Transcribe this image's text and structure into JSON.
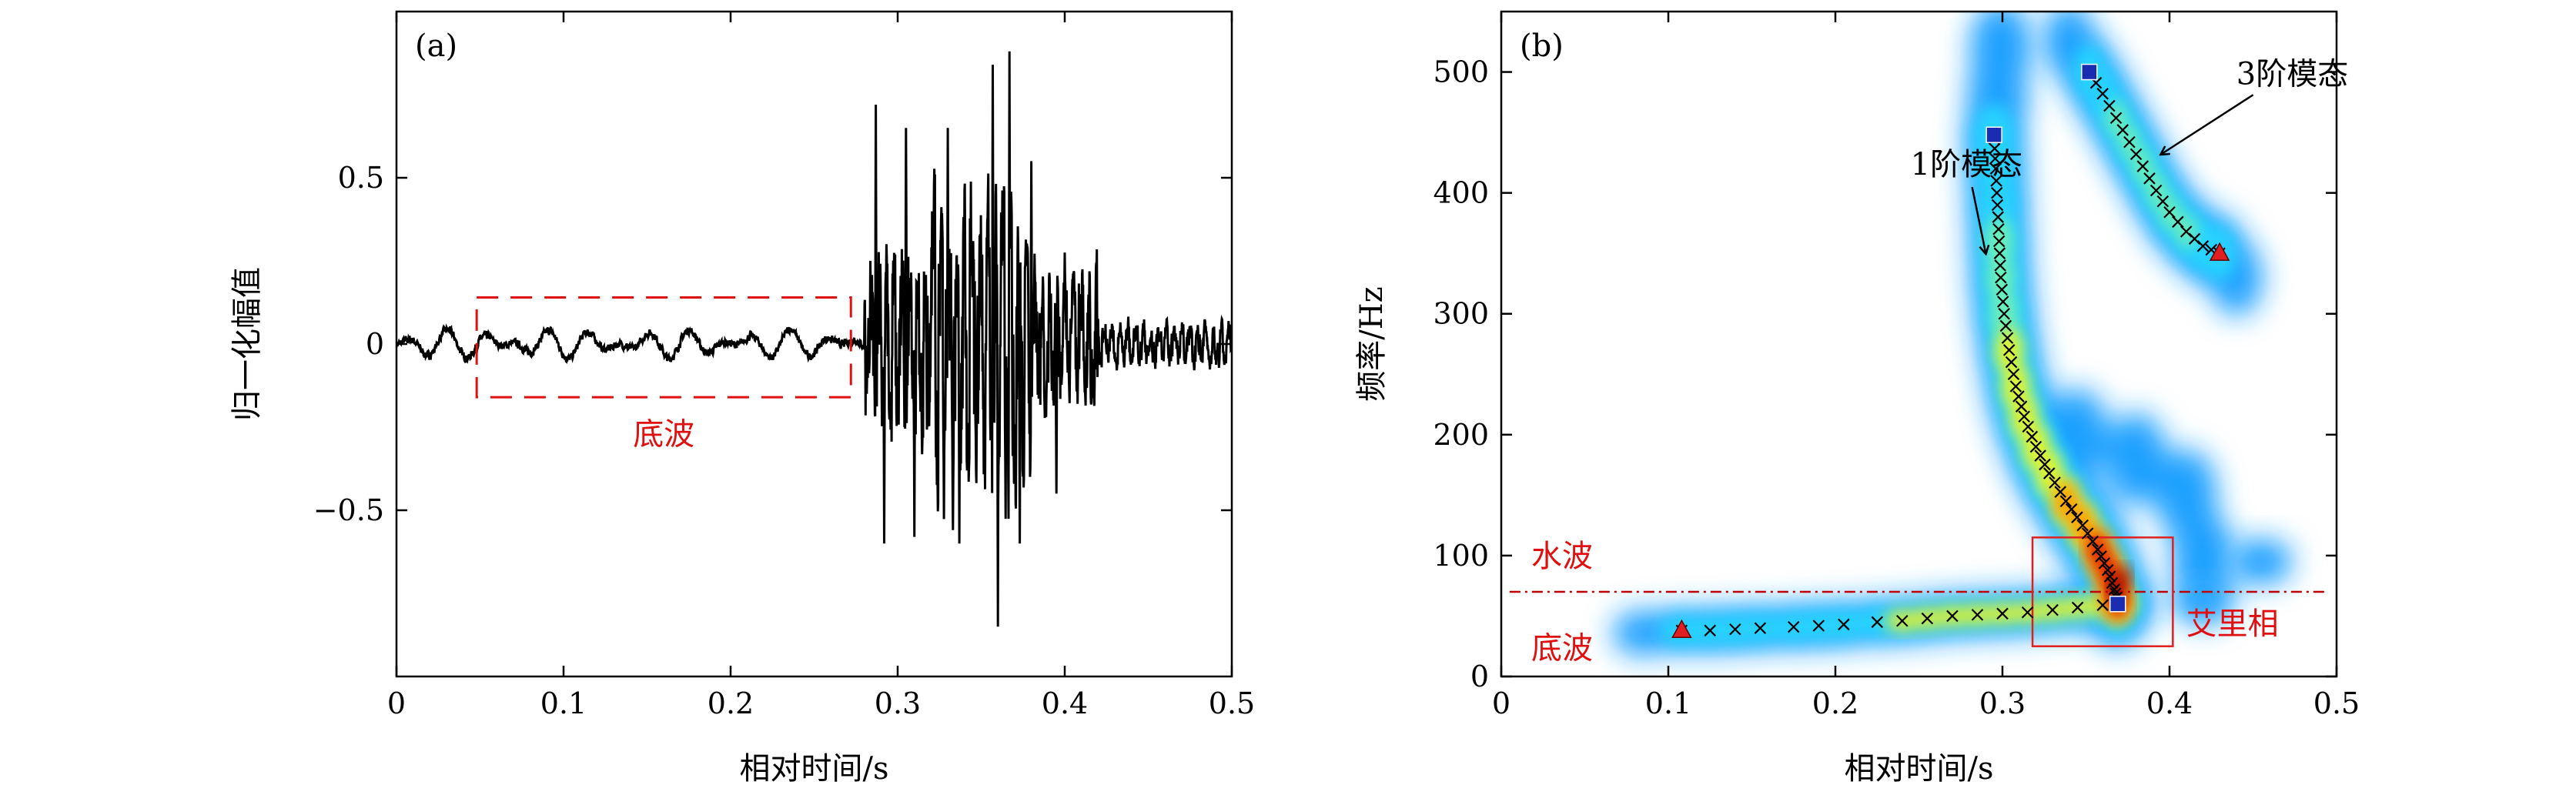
{
  "chart_data": [
    {
      "type": "line",
      "panel_label": "(a)",
      "xlabel": "相对时间/s",
      "ylabel": "归一化幅值",
      "xlim": [
        0,
        0.5
      ],
      "ylim": [
        -1.0,
        1.0
      ],
      "xticks": [
        "0",
        "0.1",
        "0.2",
        "0.3",
        "0.4",
        "0.5"
      ],
      "xtick_values": [
        0,
        0.1,
        0.2,
        0.3,
        0.4,
        0.5
      ],
      "yticks": [
        "−0.5",
        "0",
        "0.5"
      ],
      "ytick_values": [
        -0.5,
        0,
        0.5
      ],
      "series": [
        {
          "color": "#000000",
          "segments": [
            {
              "t0": 0.0,
              "t1": 0.28,
              "amplitude": 0.05
            },
            {
              "t0": 0.28,
              "t1": 0.32,
              "amplitude": 0.45
            },
            {
              "t0": 0.32,
              "t1": 0.38,
              "amplitude": 0.7
            },
            {
              "t0": 0.38,
              "t1": 0.42,
              "amplitude": 0.35
            },
            {
              "t0": 0.42,
              "t1": 0.5,
              "amplitude": 0.1
            }
          ],
          "peaks": [
            {
              "x": 0.287,
              "y": 0.72
            },
            {
              "x": 0.292,
              "y": -0.6
            },
            {
              "x": 0.305,
              "y": 0.65
            },
            {
              "x": 0.31,
              "y": -0.58
            },
            {
              "x": 0.33,
              "y": 0.65
            },
            {
              "x": 0.337,
              "y": -0.6
            },
            {
              "x": 0.357,
              "y": 0.84
            },
            {
              "x": 0.36,
              "y": -0.85
            },
            {
              "x": 0.367,
              "y": 0.88
            },
            {
              "x": 0.373,
              "y": -0.6
            },
            {
              "x": 0.38,
              "y": 0.55
            },
            {
              "x": 0.395,
              "y": -0.45
            }
          ]
        }
      ],
      "annotations": [
        {
          "kind": "dashed-box",
          "x0": 0.048,
          "x1": 0.272,
          "y0": -0.16,
          "y1": 0.14,
          "color": "#e01010"
        },
        {
          "kind": "text",
          "text": "底波",
          "x": 0.16,
          "y": -0.27,
          "color": "#e01010"
        }
      ]
    },
    {
      "type": "heatmap",
      "panel_label": "(b)",
      "xlabel": "相对时间/s",
      "ylabel": "频率/Hz",
      "xlim": [
        0,
        0.5
      ],
      "ylim": [
        0,
        550
      ],
      "xticks": [
        "0",
        "0.1",
        "0.2",
        "0.3",
        "0.4",
        "0.5"
      ],
      "xtick_values": [
        0,
        0.1,
        0.2,
        0.3,
        0.4,
        0.5
      ],
      "yticks": [
        "0",
        "100",
        "200",
        "300",
        "400",
        "500"
      ],
      "ytick_values": [
        0,
        100,
        200,
        300,
        400,
        500
      ],
      "colormap": [
        "#1aa0ff",
        "#27d3ff",
        "#74f2b0",
        "#f2f21a",
        "#ff9a00",
        "#e01a00",
        "#a00000"
      ],
      "mode_1_ridge": [
        {
          "x": 0.295,
          "y": 445
        },
        {
          "x": 0.296,
          "y": 420
        },
        {
          "x": 0.297,
          "y": 390
        },
        {
          "x": 0.298,
          "y": 360
        },
        {
          "x": 0.299,
          "y": 330
        },
        {
          "x": 0.301,
          "y": 300
        },
        {
          "x": 0.304,
          "y": 270
        },
        {
          "x": 0.308,
          "y": 240
        },
        {
          "x": 0.313,
          "y": 215
        },
        {
          "x": 0.32,
          "y": 190
        },
        {
          "x": 0.328,
          "y": 168
        },
        {
          "x": 0.338,
          "y": 145
        },
        {
          "x": 0.348,
          "y": 125
        },
        {
          "x": 0.357,
          "y": 105
        },
        {
          "x": 0.363,
          "y": 88
        },
        {
          "x": 0.367,
          "y": 72
        },
        {
          "x": 0.369,
          "y": 62
        }
      ],
      "mode_3_ridge": [
        {
          "x": 0.352,
          "y": 500
        },
        {
          "x": 0.36,
          "y": 482
        },
        {
          "x": 0.368,
          "y": 462
        },
        {
          "x": 0.376,
          "y": 442
        },
        {
          "x": 0.384,
          "y": 422
        },
        {
          "x": 0.392,
          "y": 402
        },
        {
          "x": 0.4,
          "y": 384
        },
        {
          "x": 0.41,
          "y": 368
        },
        {
          "x": 0.42,
          "y": 356
        },
        {
          "x": 0.43,
          "y": 350
        }
      ],
      "ground_wave_ridge": [
        {
          "x": 0.108,
          "y": 38
        },
        {
          "x": 0.125,
          "y": 38
        },
        {
          "x": 0.14,
          "y": 39
        },
        {
          "x": 0.155,
          "y": 40
        },
        {
          "x": 0.175,
          "y": 41
        },
        {
          "x": 0.19,
          "y": 42
        },
        {
          "x": 0.205,
          "y": 43
        },
        {
          "x": 0.225,
          "y": 45
        },
        {
          "x": 0.24,
          "y": 46
        },
        {
          "x": 0.255,
          "y": 48
        },
        {
          "x": 0.27,
          "y": 50
        },
        {
          "x": 0.285,
          "y": 51
        },
        {
          "x": 0.3,
          "y": 52
        },
        {
          "x": 0.315,
          "y": 53
        },
        {
          "x": 0.33,
          "y": 55
        },
        {
          "x": 0.345,
          "y": 57
        },
        {
          "x": 0.36,
          "y": 59
        },
        {
          "x": 0.369,
          "y": 60
        }
      ],
      "markers": [
        {
          "kind": "square",
          "x": 0.295,
          "y": 448,
          "color": "#1a2db0"
        },
        {
          "kind": "square",
          "x": 0.352,
          "y": 500,
          "color": "#1a2db0"
        },
        {
          "kind": "square",
          "x": 0.369,
          "y": 60,
          "color": "#1a2db0"
        },
        {
          "kind": "triangle",
          "x": 0.108,
          "y": 38,
          "color": "#e02020"
        },
        {
          "kind": "triangle",
          "x": 0.43,
          "y": 350,
          "color": "#e02020"
        }
      ],
      "water_wave_line": {
        "y": 70,
        "color": "#c00000"
      },
      "airy_phase_box": {
        "x0": 0.318,
        "x1": 0.402,
        "y0": 25,
        "y1": 115,
        "color": "#e02020"
      },
      "annotations": [
        {
          "text": "1阶模态",
          "x": 0.245,
          "y": 415,
          "color": "#000000",
          "arrow_to": {
            "x": 0.29,
            "y": 350
          }
        },
        {
          "text": "3阶模态",
          "x": 0.44,
          "y": 490,
          "color": "#000000",
          "arrow_to": {
            "x": 0.395,
            "y": 432
          }
        },
        {
          "text": "水波",
          "x": 0.018,
          "y": 91,
          "color": "#e01010"
        },
        {
          "text": "底波",
          "x": 0.018,
          "y": 15,
          "color": "#e01010"
        },
        {
          "text": "艾里相",
          "x": 0.41,
          "y": 35,
          "color": "#e01010"
        }
      ]
    }
  ]
}
